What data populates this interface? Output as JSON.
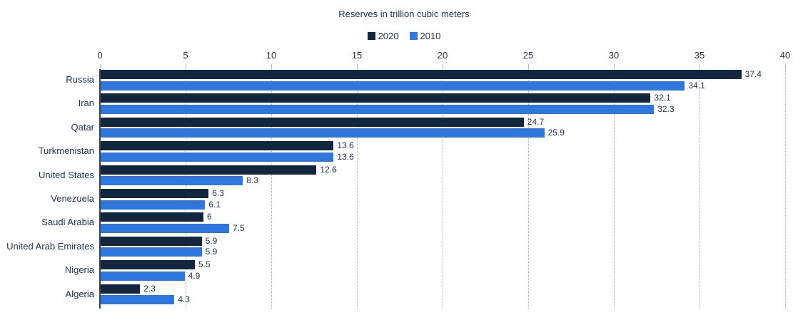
{
  "style": {
    "background": "#ffffff",
    "text_color": "#22334C",
    "grid_color": "#ABABAB",
    "tick_color": "#B0B0B0",
    "axis_line_color": "#3B4350"
  },
  "chart_data": {
    "type": "bar",
    "orientation": "horizontal",
    "title": "Reserves in trillion cubic meters",
    "xlabel": "",
    "ylabel": "",
    "categories": [
      "Russia",
      "Iran",
      "Qatar",
      "Turkmenistan",
      "United States",
      "Venezuela",
      "Saudi Arabia",
      "United Arab Emirates",
      "Nigeria",
      "Algeria"
    ],
    "series": [
      {
        "name": "2020",
        "color": "#12263D",
        "values": [
          37.4,
          32.1,
          24.7,
          13.6,
          12.6,
          6.3,
          6,
          5.9,
          5.5,
          2.3
        ]
      },
      {
        "name": "2010",
        "color": "#2F76DD",
        "values": [
          34.1,
          32.3,
          25.9,
          13.6,
          8.3,
          6.1,
          7.5,
          5.9,
          4.9,
          4.3
        ]
      }
    ],
    "x_axis": {
      "min": 0,
      "max": 40,
      "step": 5,
      "ticks": [
        0,
        5,
        10,
        15,
        20,
        25,
        30,
        35,
        40
      ],
      "position": "top"
    },
    "legend_position": "top",
    "grid": "vertical-dotted",
    "value_labels": true
  }
}
